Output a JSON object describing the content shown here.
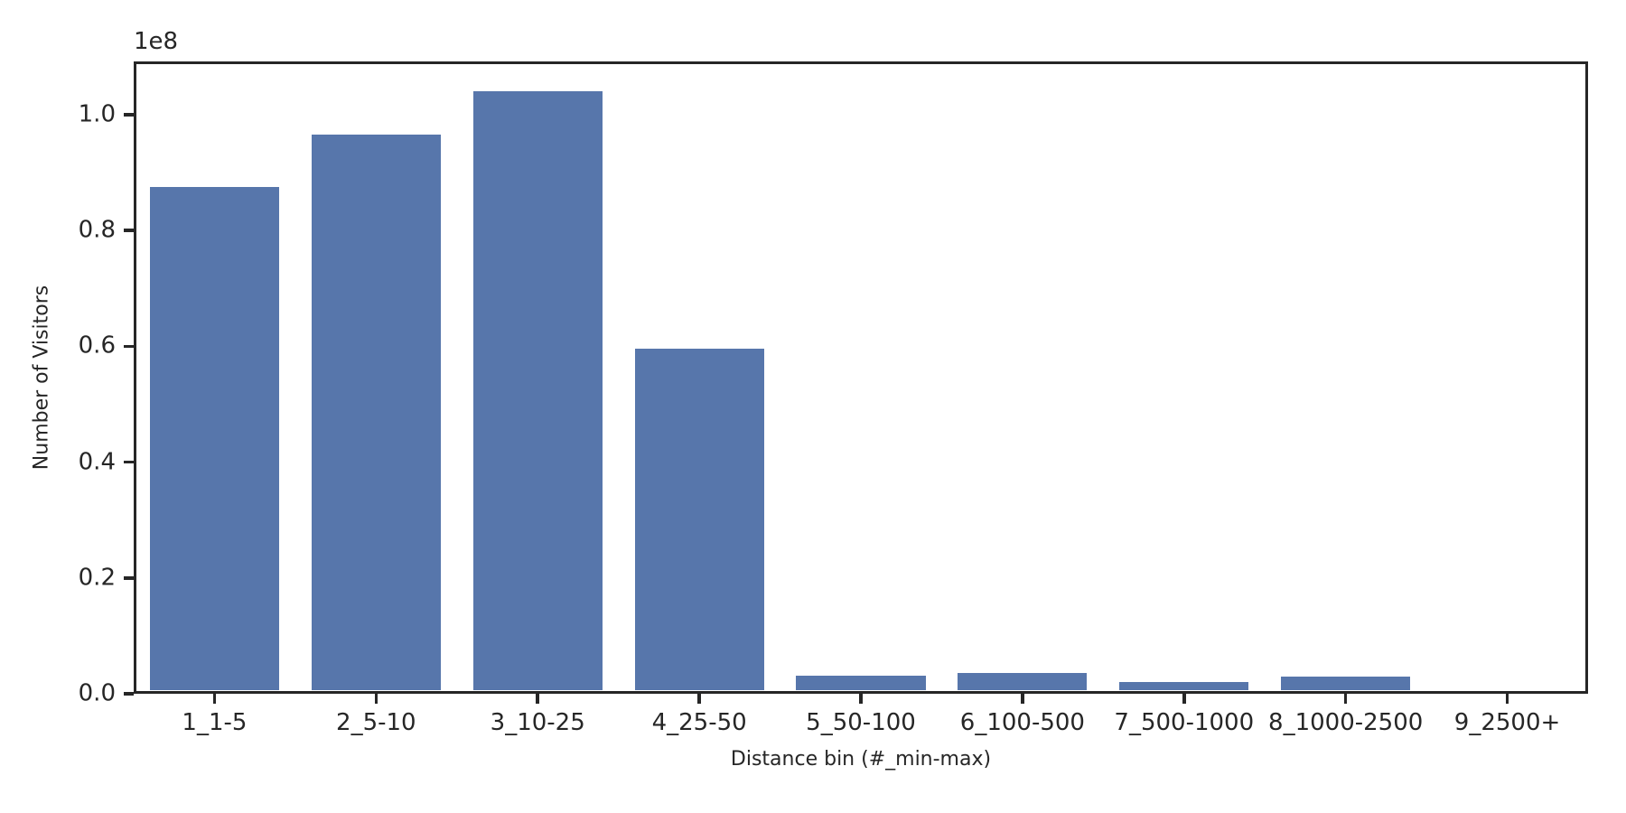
{
  "chart_data": {
    "type": "bar",
    "title": "",
    "xlabel": "Distance bin (#_min-max)",
    "ylabel": "Number of Visitors",
    "y_offset_text": "1e8",
    "categories": [
      "1_1-5",
      "2_5-10",
      "3_10-25",
      "4_25-50",
      "5_50-100",
      "6_100-500",
      "7_500-1000",
      "8_1000-2500",
      "9_2500+"
    ],
    "values": [
      87000000,
      96000000,
      103500000,
      59000000,
      2600000,
      3100000,
      1500000,
      2400000,
      0
    ],
    "y_ticks": [
      0.0,
      0.2,
      0.4,
      0.6,
      0.8,
      1.0
    ],
    "y_tick_labels": [
      "0.0",
      "0.2",
      "0.4",
      "0.6",
      "0.8",
      "1.0"
    ],
    "ylim": [
      0,
      109200000
    ],
    "grid": false,
    "legend_position": "none",
    "bar_color": "#5776ab",
    "axis_color": "#262626",
    "background_color": "#ffffff"
  }
}
